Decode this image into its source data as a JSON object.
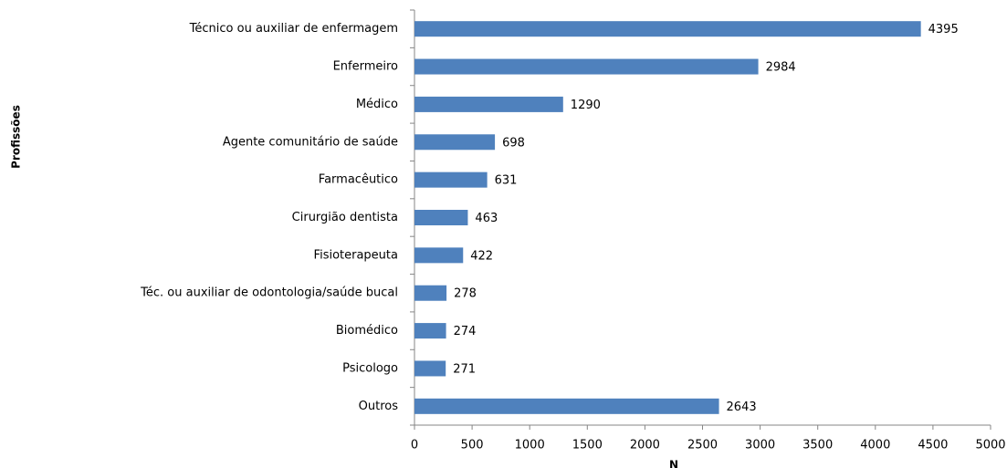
{
  "chart_data": {
    "type": "bar",
    "orientation": "horizontal",
    "x_label": "N",
    "y_label": "Profissões",
    "categories": [
      "Técnico ou auxiliar de enfermagem",
      "Enfermeiro",
      "Médico",
      "Agente comunitário de saúde",
      "Farmacêutico",
      "Cirurgião dentista",
      "Fisioterapeuta",
      "Téc. ou auxiliar de odontologia/saúde bucal",
      "Biomédico",
      "Psicologo",
      "Outros"
    ],
    "values": [
      4395,
      2984,
      1290,
      698,
      631,
      463,
      422,
      278,
      274,
      271,
      2643
    ],
    "color": "#4f81bd",
    "xlim": [
      0,
      5000
    ],
    "xticks": [
      0,
      500,
      1000,
      1500,
      2000,
      2500,
      3000,
      3500,
      4000,
      4500,
      5000
    ],
    "grid": false
  }
}
